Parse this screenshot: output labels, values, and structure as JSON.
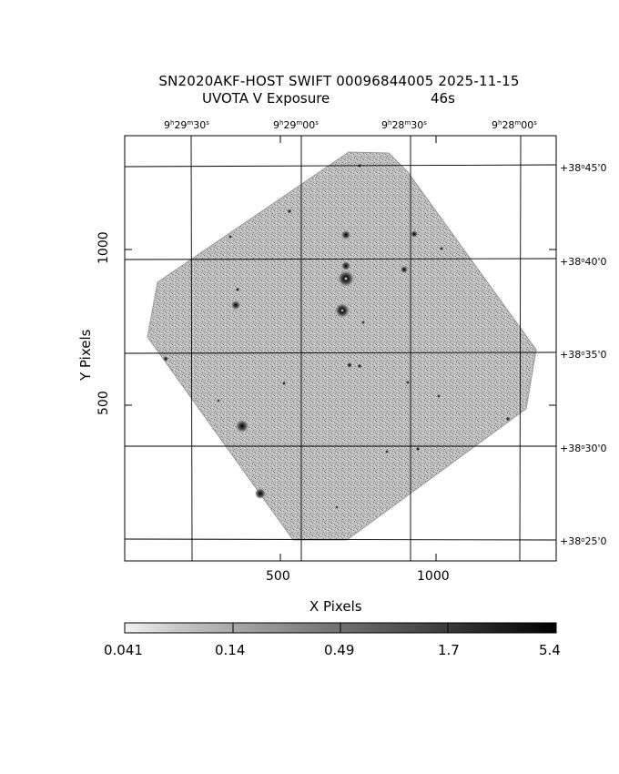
{
  "title": {
    "line1": "SN2020AKF-HOST SWIFT 00096844005 2025-11-15",
    "line2_label": "UVOTA V Exposure",
    "line2_value": "46s"
  },
  "ra_ticks": [
    {
      "h": "9",
      "m": "29",
      "s": "30"
    },
    {
      "h": "9",
      "m": "29",
      "s": "00"
    },
    {
      "h": "9",
      "m": "28",
      "s": "30"
    },
    {
      "h": "9",
      "m": "28",
      "s": "00"
    }
  ],
  "dec_ticks": [
    {
      "deg": "+38",
      "min": "45",
      "sec": "0"
    },
    {
      "deg": "+38",
      "min": "40",
      "sec": "0"
    },
    {
      "deg": "+38",
      "min": "35",
      "sec": "0"
    },
    {
      "deg": "+38",
      "min": "30",
      "sec": "0"
    },
    {
      "deg": "+38",
      "min": "25",
      "sec": "0"
    }
  ],
  "axes": {
    "xlabel": "X Pixels",
    "ylabel": "Y Pixels",
    "xticks": [
      "500",
      "1000"
    ],
    "yticks": [
      "1000",
      "500"
    ]
  },
  "colorbar": {
    "ticks": [
      "0.041",
      "0.14",
      "0.49",
      "1.7",
      "5.4"
    ]
  }
}
